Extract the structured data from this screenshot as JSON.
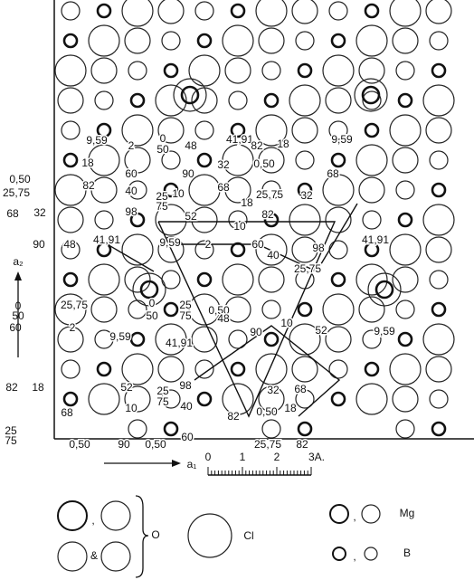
{
  "labels": [
    "9,59",
    "2",
    "0",
    "50",
    "48",
    "41,91",
    "82",
    "18",
    "9,59",
    "0,50",
    "25,75",
    "18",
    "60",
    "90",
    "32",
    "0,50",
    "68",
    "82",
    "40",
    "25",
    "75",
    "10",
    "68",
    "25,75",
    "32",
    "68",
    "32",
    "98",
    "52",
    "18",
    "82",
    "10",
    "90",
    "48",
    "41,91",
    "9,59",
    "2",
    "60",
    "98",
    "41,91",
    "40",
    "25,75",
    "0",
    "50",
    "25,75",
    "0",
    "25",
    "50",
    "75",
    "0,50",
    "60",
    "2",
    "9,59",
    "48",
    "90",
    "10",
    "52",
    "9,59",
    "41,91",
    "82",
    "18",
    "52",
    "25",
    "98",
    "75",
    "32",
    "68",
    "10",
    "40",
    "68",
    "82",
    "0,50",
    "18",
    "25",
    "75",
    "0,50",
    "90",
    "0,50",
    "60",
    "25,75",
    "82"
  ],
  "axes": {
    "a1": "a₁",
    "a2": "a₂"
  },
  "scale": [
    "0",
    "1",
    "2",
    "3A."
  ],
  "legend": {
    "comma1": ",",
    "and": "&",
    "o": "O",
    "cl": "Cl",
    "comma2": ",",
    "mg": "Mg",
    "comma3": ",",
    "b": "B"
  }
}
